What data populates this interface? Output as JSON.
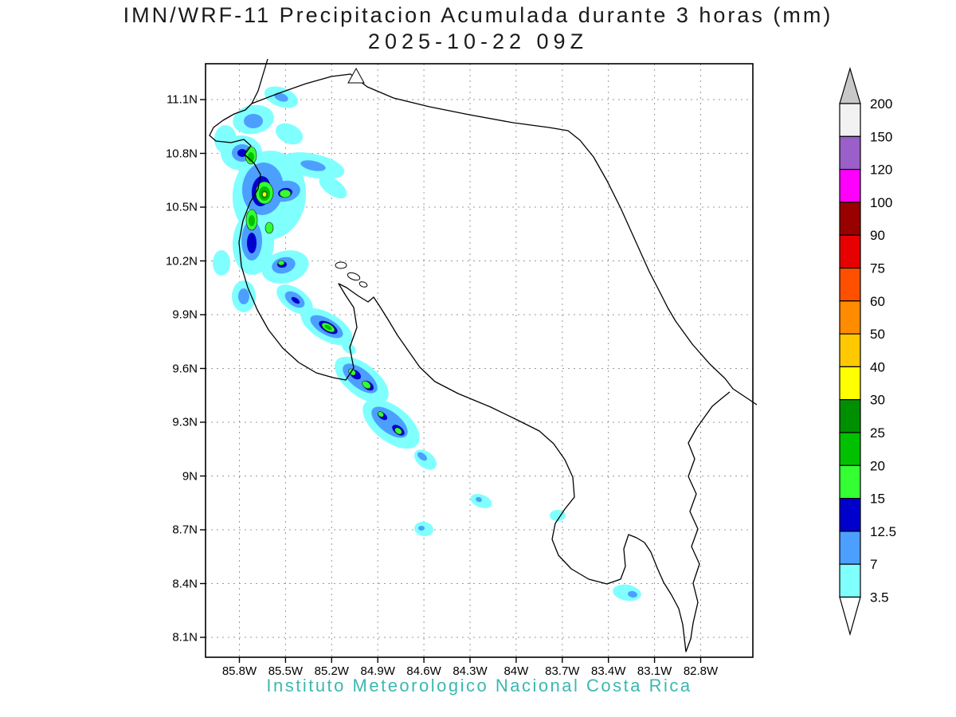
{
  "title": {
    "line1": "IMN/WRF-11 Precipitacion Acumulada durante 3 horas (mm)",
    "line2": "2025-10-22 09Z"
  },
  "caption": "Instituto Meteorologico Nacional Costa Rica",
  "axes": {
    "lat_ticks": [
      "11.1N",
      "10.8N",
      "10.5N",
      "10.2N",
      "9.9N",
      "9.6N",
      "9.3N",
      "9N",
      "8.7N",
      "8.4N",
      "8.1N"
    ],
    "lon_ticks": [
      "85.8W",
      "85.5W",
      "85.2W",
      "84.9W",
      "84.6W",
      "84.3W",
      "84W",
      "83.7W",
      "83.4W",
      "83.1W",
      "82.8W"
    ]
  },
  "colorbar": {
    "unit": "mm",
    "levels_top_to_bottom": [
      "200",
      "150",
      "120",
      "100",
      "90",
      "75",
      "60",
      "50",
      "40",
      "30",
      "25",
      "20",
      "15",
      "12.5",
      "7",
      "3.5"
    ],
    "segment_colors_top_to_bottom": [
      "#f2f2f2",
      "#9a5fc8",
      "#ff00ff",
      "#990000",
      "#e60000",
      "#ff5000",
      "#ff8c00",
      "#ffc800",
      "#ffff00",
      "#008f00",
      "#00c000",
      "#33ff33",
      "#0000cd",
      "#4d9fff",
      "#80ffff"
    ],
    "above_top_color": "#c8c8c8",
    "below_bottom_color": "#ffffff"
  },
  "map": {
    "region": "Costa Rica",
    "palette": {
      "cyan": "#80ffff",
      "blue": "#4d9fff",
      "dark_blue": "#0000cd",
      "bright_green": "#33ff33",
      "green": "#00c000",
      "dark_green": "#008f00",
      "yellow": "#ffff00"
    },
    "caption_color": "#3ab8b0",
    "precip_summary": "Scattered convective precipitation (3.5-40 mm) over Guanacaste and the Nicoya Peninsula, a SE-oriented band of cells along the central Pacific coast, and isolated light cells near the southern Pacific coast."
  }
}
